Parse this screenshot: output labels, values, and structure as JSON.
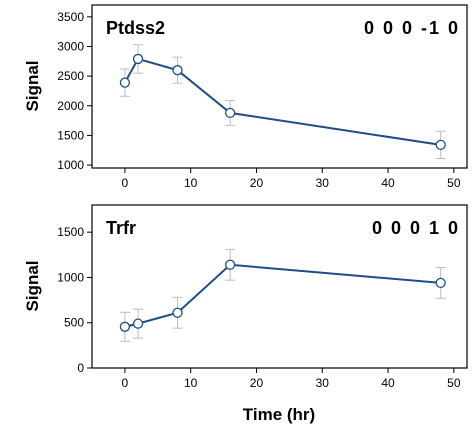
{
  "chart_data": [
    {
      "type": "line",
      "title": "Ptdss2",
      "code": "0 0 0 -1 0",
      "ylabel": "Signal",
      "xlim": [
        -5,
        52
      ],
      "ylim": [
        950,
        3700
      ],
      "xticks": [
        0,
        10,
        20,
        30,
        40,
        50
      ],
      "yticks": [
        1000,
        1500,
        2000,
        2500,
        3000,
        3500
      ],
      "x": [
        0,
        2,
        8,
        16,
        48
      ],
      "y": [
        2390,
        2790,
        2600,
        1880,
        1340
      ],
      "err": [
        230,
        240,
        220,
        210,
        230
      ],
      "colors": {
        "line": "#1f4e87",
        "errorbar": "#bdbdbd",
        "marker_fill": "#ffffff"
      }
    },
    {
      "type": "line",
      "title": "Trfr",
      "code": "0 0 0 1 0",
      "ylabel": "Signal",
      "xlim": [
        -5,
        52
      ],
      "ylim": [
        0,
        1800
      ],
      "xticks": [
        0,
        10,
        20,
        30,
        40,
        50
      ],
      "yticks": [
        0,
        500,
        1000,
        1500
      ],
      "x": [
        0,
        2,
        8,
        16,
        48
      ],
      "y": [
        455,
        490,
        610,
        1140,
        940
      ],
      "err": [
        160,
        160,
        170,
        170,
        170
      ],
      "colors": {
        "line": "#1f4e87",
        "errorbar": "#bdbdbd",
        "marker_fill": "#ffffff"
      }
    }
  ],
  "xlabel": "Time (hr)"
}
